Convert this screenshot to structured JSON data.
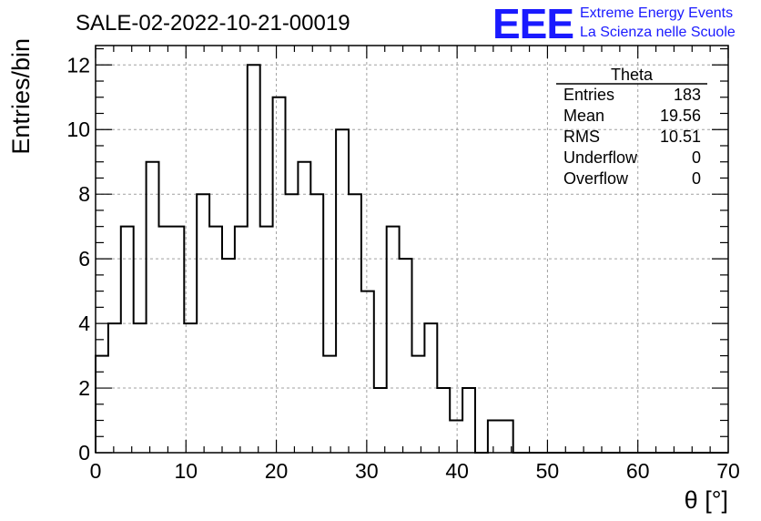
{
  "chart_data": {
    "type": "histogram",
    "title": "SALE-02-2022-10-21-00019",
    "xlabel": "θ [°]",
    "ylabel": "Entries/bin",
    "xlim": [
      0,
      70
    ],
    "ylim": [
      0,
      12.6
    ],
    "x_ticks": [
      0,
      10,
      20,
      30,
      40,
      50,
      60,
      70
    ],
    "y_ticks": [
      0,
      2,
      4,
      6,
      8,
      10,
      12
    ],
    "grid": true,
    "bin_width": 1.4,
    "bin_start": 0,
    "values": [
      3,
      4,
      7,
      4,
      9,
      7,
      7,
      4,
      8,
      7,
      6,
      7,
      12,
      7,
      11,
      8,
      9,
      8,
      3,
      10,
      8,
      5,
      2,
      7,
      6,
      3,
      4,
      2,
      1,
      2,
      0,
      1,
      1,
      0,
      0,
      0,
      0,
      0,
      0,
      0,
      0,
      0,
      0,
      0,
      0,
      0,
      0,
      0,
      0,
      0
    ],
    "stats": {
      "title": "Theta",
      "rows": [
        {
          "label": "Entries",
          "value": "183"
        },
        {
          "label": "Mean",
          "value": "19.56"
        },
        {
          "label": "RMS",
          "value": "10.51"
        },
        {
          "label": "Underflow",
          "value": "0"
        },
        {
          "label": "Overflow",
          "value": "0"
        }
      ]
    }
  },
  "branding": {
    "logo": "EEE",
    "line1": "Extreme Energy Events",
    "line2": "La Scienza nelle Scuole",
    "color": "#1a1aff"
  }
}
